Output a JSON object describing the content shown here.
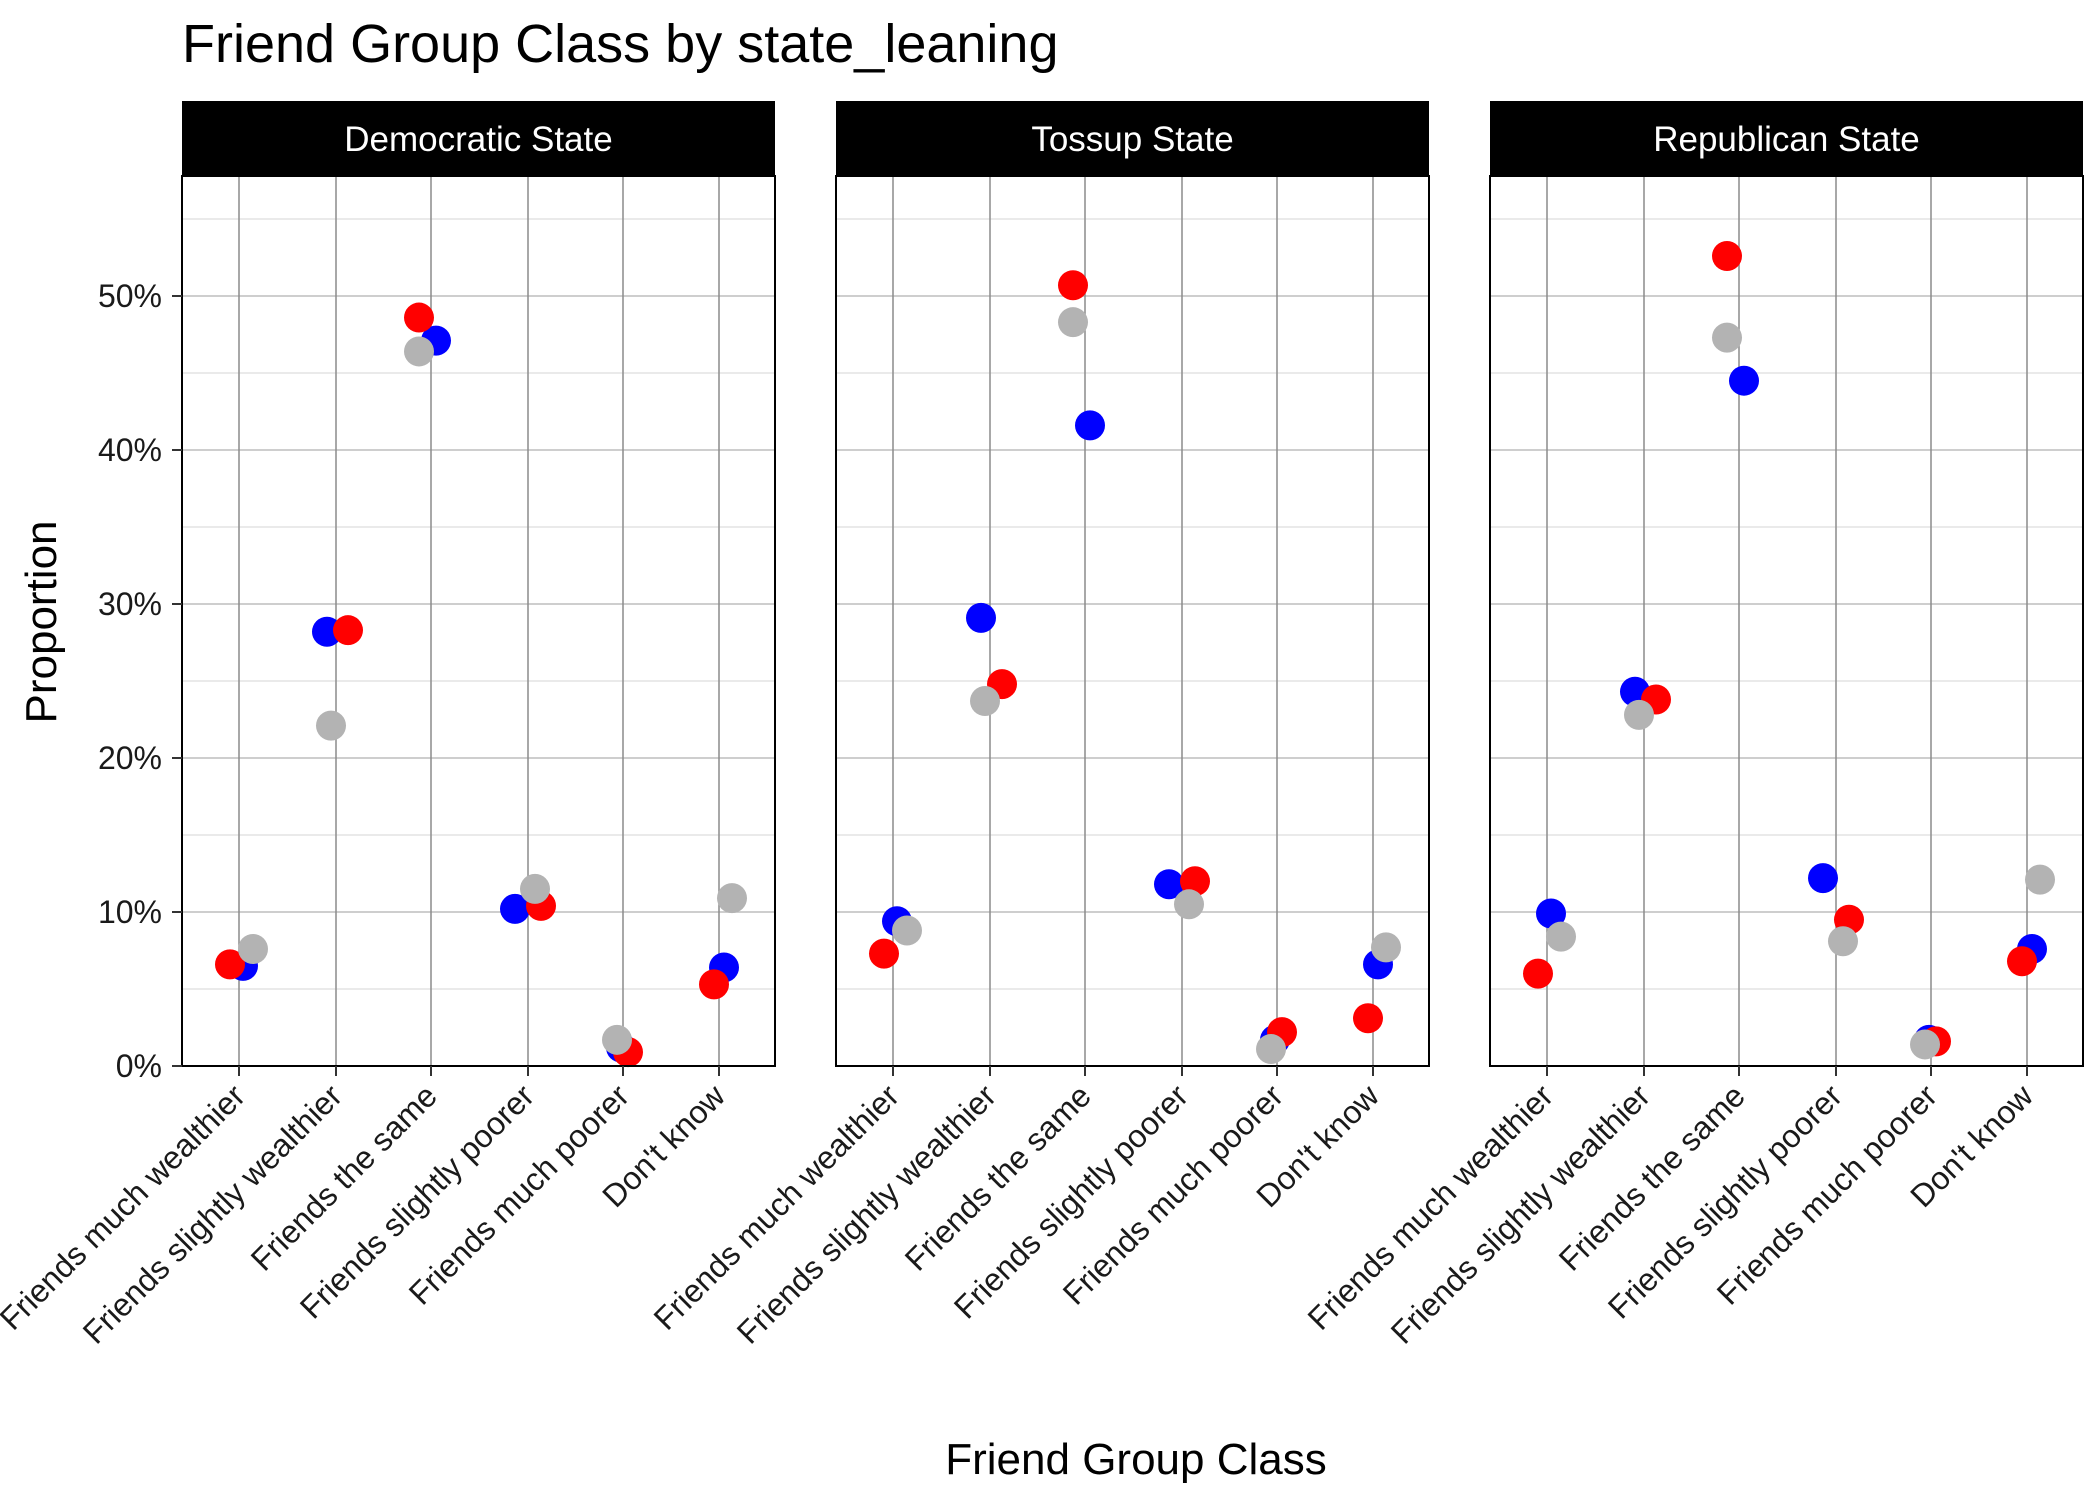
{
  "chart_data": {
    "type": "scatter",
    "title": "Friend Group Class by state_leaning",
    "xlabel": "Friend Group Class",
    "ylabel": "Proportion",
    "ylim": [
      0,
      0.58
    ],
    "yticks": [
      0,
      0.1,
      0.2,
      0.3,
      0.4,
      0.5
    ],
    "ytick_labels": [
      "0%",
      "10%",
      "20%",
      "30%",
      "40%",
      "50%"
    ],
    "grid": true,
    "legend": "none",
    "categories": [
      "Friends much wealthier",
      "Friends slightly wealthier",
      "Friends the same",
      "Friends slightly poorer",
      "Friends much poorer",
      "Don't know"
    ],
    "colors": {
      "blue": "#0000ff",
      "red": "#ff0000",
      "gray": "#b3b3b3"
    },
    "panels": [
      {
        "label": "Democratic State",
        "series": [
          {
            "color": "blue",
            "values": [
              0.065,
              0.282,
              0.471,
              0.102,
              0.012,
              0.064
            ]
          },
          {
            "color": "red",
            "values": [
              0.066,
              0.283,
              0.486,
              0.104,
              0.009,
              0.053
            ]
          },
          {
            "color": "gray",
            "values": [
              0.076,
              0.221,
              0.464,
              0.115,
              0.017,
              0.109
            ]
          }
        ]
      },
      {
        "label": "Tossup State",
        "series": [
          {
            "color": "blue",
            "values": [
              0.094,
              0.291,
              0.416,
              0.118,
              0.017,
              0.066
            ]
          },
          {
            "color": "red",
            "values": [
              0.073,
              0.248,
              0.507,
              0.12,
              0.022,
              0.031
            ]
          },
          {
            "color": "gray",
            "values": [
              0.088,
              0.237,
              0.483,
              0.105,
              0.011,
              0.077
            ]
          }
        ]
      },
      {
        "label": "Republican State",
        "series": [
          {
            "color": "blue",
            "values": [
              0.099,
              0.243,
              0.445,
              0.122,
              0.017,
              0.076
            ]
          },
          {
            "color": "red",
            "values": [
              0.06,
              0.238,
              0.526,
              0.095,
              0.016,
              0.068
            ]
          },
          {
            "color": "gray",
            "values": [
              0.084,
              0.228,
              0.473,
              0.081,
              0.014,
              0.121
            ]
          }
        ]
      }
    ]
  }
}
